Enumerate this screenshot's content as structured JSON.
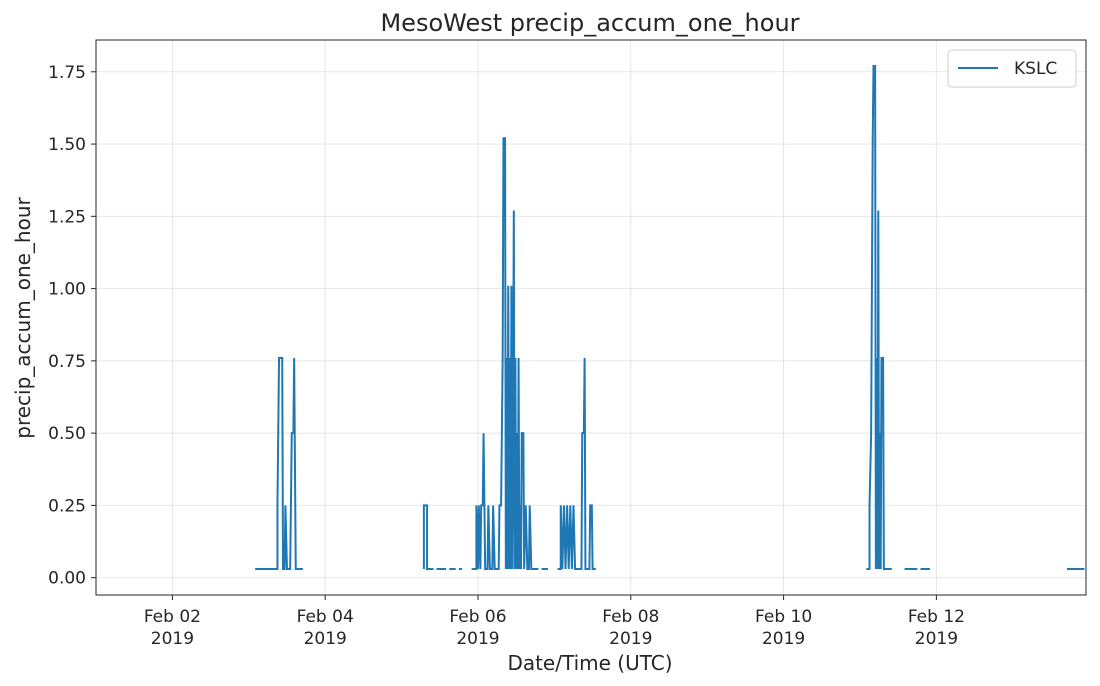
{
  "chart_data": {
    "type": "line",
    "title": "MesoWest precip_accum_one_hour",
    "xlabel": "Date/Time (UTC)",
    "ylabel": "precip_accum_one_hour",
    "xlim": [
      "2019-02-01T00:00",
      "2019-02-13T23:00"
    ],
    "ylim": [
      -0.06,
      1.86
    ],
    "yticks": [
      0.0,
      0.25,
      0.5,
      0.75,
      1.0,
      1.25,
      1.5,
      1.75
    ],
    "ytick_labels": [
      "0.00",
      "0.25",
      "0.50",
      "0.75",
      "1.00",
      "1.25",
      "1.50",
      "1.75"
    ],
    "xticks": [
      {
        "date": "2019-02-02T00:00",
        "line1": "Feb 02",
        "line2": "2019"
      },
      {
        "date": "2019-02-04T00:00",
        "line1": "Feb 04",
        "line2": "2019"
      },
      {
        "date": "2019-02-06T00:00",
        "line1": "Feb 06",
        "line2": "2019"
      },
      {
        "date": "2019-02-08T00:00",
        "line1": "Feb 08",
        "line2": "2019"
      },
      {
        "date": "2019-02-10T00:00",
        "line1": "Feb 10",
        "line2": "2019"
      },
      {
        "date": "2019-02-12T00:00",
        "line1": "Feb 12",
        "line2": "2019"
      }
    ],
    "grid": true,
    "legend_position": "top-right",
    "series": [
      {
        "name": "KSLC",
        "color": "#1f77b4",
        "segments": [
          [
            [
              "2019-02-03T02:00",
              0.03
            ],
            [
              "2019-02-03T09:00",
              0.03
            ],
            [
              "2019-02-03T09:00",
              0.25
            ],
            [
              "2019-02-03T09:30",
              0.76
            ],
            [
              "2019-02-03T10:30",
              0.76
            ],
            [
              "2019-02-03T10:45",
              0.03
            ],
            [
              "2019-02-03T11:15",
              0.03
            ],
            [
              "2019-02-03T11:30",
              0.25
            ],
            [
              "2019-02-03T12:00",
              0.03
            ],
            [
              "2019-02-03T13:00",
              0.03
            ],
            [
              "2019-02-03T13:30",
              0.5
            ],
            [
              "2019-02-03T14:00",
              0.5
            ],
            [
              "2019-02-03T14:15",
              0.76
            ],
            [
              "2019-02-03T14:45",
              0.03
            ],
            [
              "2019-02-03T17:00",
              0.03
            ]
          ],
          [
            [
              "2019-02-05T07:00",
              0.03
            ],
            [
              "2019-02-05T07:00",
              0.25
            ],
            [
              "2019-02-05T08:00",
              0.25
            ],
            [
              "2019-02-05T08:00",
              0.03
            ],
            [
              "2019-02-05T10:00",
              0.03
            ]
          ],
          [
            [
              "2019-02-05T11:00",
              0.03
            ],
            [
              "2019-02-05T14:00",
              0.03
            ]
          ],
          [
            [
              "2019-02-05T15:00",
              0.03
            ],
            [
              "2019-02-05T17:00",
              0.03
            ]
          ],
          [
            [
              "2019-02-05T18:00",
              0.03
            ],
            [
              "2019-02-05T19:00",
              0.03
            ]
          ],
          [
            [
              "2019-02-05T22:00",
              0.03
            ],
            [
              "2019-02-05T23:30",
              0.03
            ],
            [
              "2019-02-05T23:30",
              0.25
            ],
            [
              "2019-02-06T00:00",
              0.03
            ],
            [
              "2019-02-06T00:15",
              0.25
            ],
            [
              "2019-02-06T00:45",
              0.03
            ],
            [
              "2019-02-06T01:00",
              0.25
            ],
            [
              "2019-02-06T01:30",
              0.25
            ],
            [
              "2019-02-06T01:45",
              0.5
            ],
            [
              "2019-02-06T02:15",
              0.03
            ],
            [
              "2019-02-06T03:00",
              0.03
            ],
            [
              "2019-02-06T03:15",
              0.25
            ],
            [
              "2019-02-06T03:45",
              0.03
            ],
            [
              "2019-02-06T04:30",
              0.03
            ],
            [
              "2019-02-06T04:45",
              0.25
            ],
            [
              "2019-02-06T05:15",
              0.03
            ],
            [
              "2019-02-06T06:30",
              0.03
            ],
            [
              "2019-02-06T06:45",
              0.25
            ],
            [
              "2019-02-06T07:15",
              0.25
            ],
            [
              "2019-02-06T07:30",
              0.5
            ],
            [
              "2019-02-06T07:45",
              0.76
            ],
            [
              "2019-02-06T08:00",
              1.52
            ],
            [
              "2019-02-06T08:30",
              1.52
            ],
            [
              "2019-02-06T08:45",
              0.03
            ],
            [
              "2019-02-06T09:00",
              0.76
            ],
            [
              "2019-02-06T09:15",
              0.03
            ],
            [
              "2019-02-06T09:30",
              1.01
            ],
            [
              "2019-02-06T09:45",
              0.03
            ],
            [
              "2019-02-06T10:00",
              0.76
            ],
            [
              "2019-02-06T10:15",
              0.03
            ],
            [
              "2019-02-06T10:30",
              1.01
            ],
            [
              "2019-02-06T10:45",
              0.03
            ],
            [
              "2019-02-06T11:00",
              0.5
            ],
            [
              "2019-02-06T11:15",
              1.27
            ],
            [
              "2019-02-06T11:30",
              0.03
            ],
            [
              "2019-02-06T11:45",
              0.76
            ],
            [
              "2019-02-06T12:00",
              0.03
            ],
            [
              "2019-02-06T12:15",
              0.5
            ],
            [
              "2019-02-06T12:30",
              0.03
            ],
            [
              "2019-02-06T12:45",
              0.76
            ],
            [
              "2019-02-06T13:00",
              0.03
            ],
            [
              "2019-02-06T13:15",
              0.25
            ],
            [
              "2019-02-06T13:30",
              0.03
            ],
            [
              "2019-02-06T13:45",
              0.5
            ],
            [
              "2019-02-06T14:15",
              0.5
            ],
            [
              "2019-02-06T14:30",
              0.03
            ],
            [
              "2019-02-06T15:00",
              0.25
            ],
            [
              "2019-02-06T15:30",
              0.03
            ],
            [
              "2019-02-06T16:00",
              0.03
            ],
            [
              "2019-02-06T16:15",
              0.25
            ],
            [
              "2019-02-06T16:45",
              0.03
            ],
            [
              "2019-02-06T19:00",
              0.03
            ]
          ],
          [
            [
              "2019-02-06T20:00",
              0.03
            ],
            [
              "2019-02-06T22:00",
              0.03
            ]
          ],
          [
            [
              "2019-02-07T01:00",
              0.03
            ],
            [
              "2019-02-07T02:00",
              0.03
            ],
            [
              "2019-02-07T02:00",
              0.25
            ],
            [
              "2019-02-07T02:30",
              0.03
            ],
            [
              "2019-02-07T03:00",
              0.25
            ],
            [
              "2019-02-07T03:30",
              0.03
            ],
            [
              "2019-02-07T04:00",
              0.25
            ],
            [
              "2019-02-07T04:30",
              0.03
            ],
            [
              "2019-02-07T05:00",
              0.25
            ],
            [
              "2019-02-07T05:30",
              0.03
            ],
            [
              "2019-02-07T06:00",
              0.25
            ],
            [
              "2019-02-07T06:30",
              0.03
            ],
            [
              "2019-02-07T08:30",
              0.03
            ],
            [
              "2019-02-07T08:45",
              0.5
            ],
            [
              "2019-02-07T09:15",
              0.5
            ],
            [
              "2019-02-07T09:30",
              0.76
            ],
            [
              "2019-02-07T09:45",
              0.03
            ],
            [
              "2019-02-07T11:00",
              0.03
            ],
            [
              "2019-02-07T11:15",
              0.25
            ],
            [
              "2019-02-07T11:45",
              0.25
            ],
            [
              "2019-02-07T12:00",
              0.03
            ],
            [
              "2019-02-07T13:00",
              0.03
            ]
          ],
          [
            [
              "2019-02-11T02:00",
              0.03
            ],
            [
              "2019-02-11T03:00",
              0.03
            ],
            [
              "2019-02-11T03:00",
              0.25
            ],
            [
              "2019-02-11T03:30",
              0.5
            ],
            [
              "2019-02-11T04:00",
              1.52
            ],
            [
              "2019-02-11T04:15",
              1.77
            ],
            [
              "2019-02-11T04:45",
              1.77
            ],
            [
              "2019-02-11T05:00",
              0.03
            ],
            [
              "2019-02-11T05:15",
              0.76
            ],
            [
              "2019-02-11T05:30",
              0.03
            ],
            [
              "2019-02-11T05:45",
              1.27
            ],
            [
              "2019-02-11T06:00",
              0.03
            ],
            [
              "2019-02-11T06:15",
              0.5
            ],
            [
              "2019-02-11T06:30",
              0.03
            ],
            [
              "2019-02-11T06:45",
              0.76
            ],
            [
              "2019-02-11T07:15",
              0.76
            ],
            [
              "2019-02-11T07:30",
              0.03
            ],
            [
              "2019-02-11T10:00",
              0.03
            ]
          ],
          [
            [
              "2019-02-11T14:00",
              0.03
            ],
            [
              "2019-02-11T18:00",
              0.03
            ]
          ],
          [
            [
              "2019-02-11T19:00",
              0.03
            ],
            [
              "2019-02-11T22:00",
              0.03
            ]
          ],
          [
            [
              "2019-02-13T17:00",
              0.03
            ],
            [
              "2019-02-13T22:30",
              0.03
            ]
          ]
        ]
      }
    ]
  }
}
